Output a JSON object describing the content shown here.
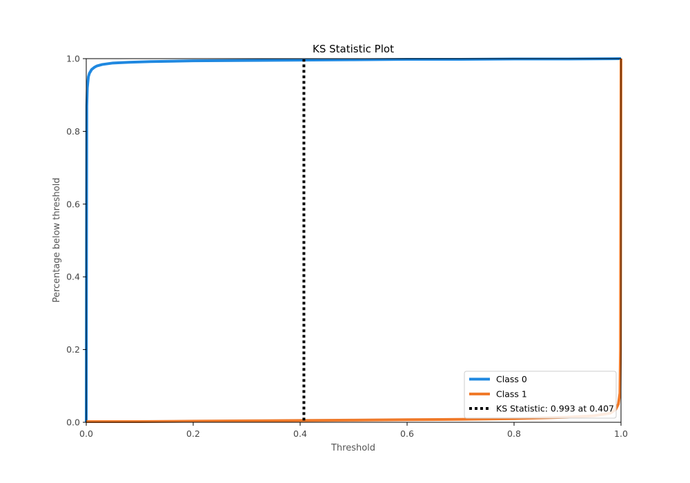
{
  "chart_data": {
    "type": "line",
    "title": "KS Statistic Plot",
    "xlabel": "Threshold",
    "ylabel": "Percentage below threshold",
    "xlim": [
      0.0,
      1.0
    ],
    "ylim": [
      0.0,
      1.0
    ],
    "x_ticks": [
      "0.0",
      "0.2",
      "0.4",
      "0.6",
      "0.8",
      "1.0"
    ],
    "y_ticks": [
      "0.0",
      "0.2",
      "0.4",
      "0.6",
      "0.8",
      "1.0"
    ],
    "grid": false,
    "legend_position": "bottom-right",
    "series": [
      {
        "name": "Class 0",
        "color": "#1f88e0",
        "style": "solid",
        "x": [
          0.0,
          0.0005,
          0.001,
          0.002,
          0.004,
          0.006,
          0.01,
          0.015,
          0.02,
          0.03,
          0.05,
          0.08,
          0.12,
          0.2,
          0.3,
          0.4,
          0.5,
          0.6,
          0.7,
          0.8,
          0.9,
          1.0
        ],
        "values": [
          0.0,
          0.5,
          0.87,
          0.92,
          0.95,
          0.96,
          0.97,
          0.976,
          0.98,
          0.984,
          0.988,
          0.99,
          0.992,
          0.994,
          0.995,
          0.996,
          0.997,
          0.998,
          0.998,
          0.999,
          0.999,
          1.0
        ]
      },
      {
        "name": "Class 1",
        "color": "#f07a2a",
        "style": "solid",
        "x": [
          0.0,
          0.1,
          0.2,
          0.3,
          0.4,
          0.5,
          0.6,
          0.7,
          0.8,
          0.9,
          0.95,
          0.98,
          0.99,
          0.995,
          0.998,
          0.999,
          1.0
        ],
        "values": [
          0.002,
          0.002,
          0.003,
          0.004,
          0.005,
          0.006,
          0.007,
          0.008,
          0.01,
          0.014,
          0.018,
          0.025,
          0.035,
          0.05,
          0.08,
          0.2,
          1.0
        ]
      }
    ],
    "ks_line": {
      "name": "KS Statistic: 0.993 at 0.407",
      "x": 0.407,
      "y_range": [
        0.005,
        0.998
      ],
      "color": "#000000",
      "style": "dotted"
    }
  }
}
